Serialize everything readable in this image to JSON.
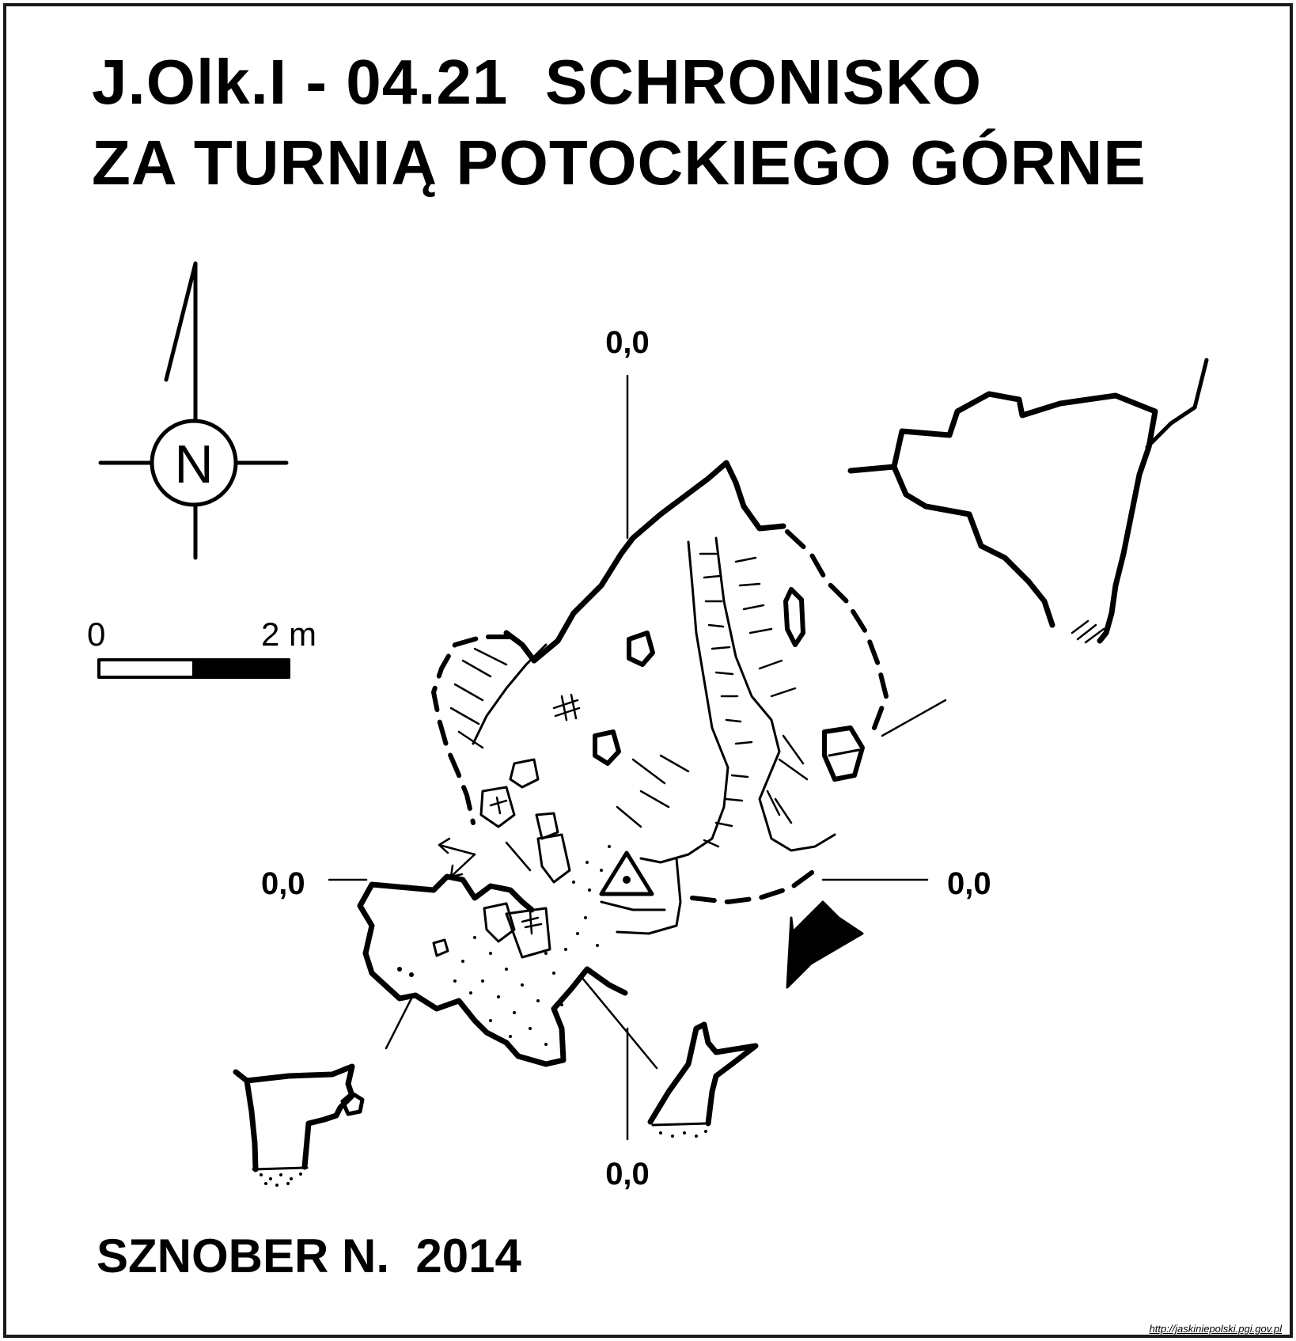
{
  "title": {
    "line1": "J.Olk.I - 04.21  SCHRONISKO",
    "line2": "ZA TURNIĄ POTOCKIEGO GÓRNE"
  },
  "north_arrow": {
    "letter": "N"
  },
  "scale_bar": {
    "start_label": "0",
    "end_label": "2 m"
  },
  "reference_levels": {
    "top": "0,0",
    "left": "0,0",
    "right": "0,0",
    "bottom": "0,0"
  },
  "author": "SZNOBER N.  2014",
  "source_url": "http://jaskiniepolski.pgi.gov.pl",
  "colors": {
    "ink": "#000000",
    "paper": "#ffffff",
    "frame": "#1a1a1a"
  }
}
